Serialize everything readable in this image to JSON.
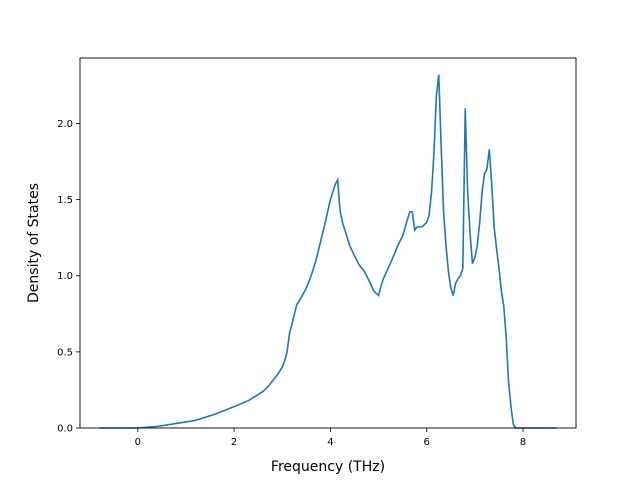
{
  "chart_data": {
    "type": "line",
    "xlabel": "Frequency (THz)",
    "ylabel": "Density of States",
    "xlim": [
      -1.2,
      9.1
    ],
    "ylim": [
      0.0,
      2.43
    ],
    "xticks": [
      0,
      2,
      4,
      6,
      8
    ],
    "yticks": [
      0.0,
      0.5,
      1.0,
      1.5,
      2.0
    ],
    "xtick_labels": [
      "0",
      "2",
      "4",
      "6",
      "8"
    ],
    "ytick_labels": [
      "0.0",
      "0.5",
      "1.0",
      "1.5",
      "2.0"
    ],
    "grid": false,
    "series": [
      {
        "color": "#1f77b4",
        "x": [
          -0.8,
          -0.4,
          0.0,
          0.4,
          0.8,
          1.2,
          1.6,
          2.0,
          2.3,
          2.6,
          2.7,
          2.8,
          2.9,
          3.0,
          3.05,
          3.1,
          3.15,
          3.2,
          3.3,
          3.4,
          3.5,
          3.6,
          3.7,
          3.8,
          3.9,
          4.0,
          4.1,
          4.15,
          4.2,
          4.25,
          4.3,
          4.4,
          4.5,
          4.6,
          4.7,
          4.8,
          4.9,
          5.0,
          5.05,
          5.1,
          5.2,
          5.3,
          5.4,
          5.5,
          5.6,
          5.65,
          5.7,
          5.75,
          5.8,
          5.9,
          6.0,
          6.05,
          6.1,
          6.15,
          6.2,
          6.25,
          6.3,
          6.35,
          6.4,
          6.45,
          6.5,
          6.55,
          6.6,
          6.65,
          6.7,
          6.75,
          6.8,
          6.85,
          6.9,
          6.95,
          7.0,
          7.05,
          7.1,
          7.15,
          7.2,
          7.25,
          7.3,
          7.35,
          7.4,
          7.45,
          7.5,
          7.55,
          7.6,
          7.65,
          7.7,
          7.75,
          7.8,
          7.85,
          7.9,
          8.0,
          8.1,
          8.3,
          8.7
        ],
        "y": [
          0.0,
          0.0,
          0.0,
          0.01,
          0.03,
          0.05,
          0.09,
          0.14,
          0.18,
          0.24,
          0.27,
          0.31,
          0.35,
          0.4,
          0.44,
          0.5,
          0.62,
          0.68,
          0.81,
          0.86,
          0.92,
          1.0,
          1.1,
          1.23,
          1.36,
          1.5,
          1.6,
          1.63,
          1.43,
          1.35,
          1.3,
          1.2,
          1.13,
          1.07,
          1.03,
          0.97,
          0.9,
          0.87,
          0.93,
          0.98,
          1.05,
          1.12,
          1.2,
          1.26,
          1.37,
          1.42,
          1.42,
          1.3,
          1.32,
          1.32,
          1.35,
          1.4,
          1.55,
          1.8,
          2.18,
          2.32,
          1.85,
          1.42,
          1.2,
          1.03,
          0.92,
          0.87,
          0.95,
          0.98,
          1.0,
          1.05,
          2.1,
          1.55,
          1.28,
          1.08,
          1.12,
          1.2,
          1.35,
          1.55,
          1.67,
          1.7,
          1.83,
          1.6,
          1.32,
          1.18,
          1.05,
          0.9,
          0.8,
          0.6,
          0.3,
          0.14,
          0.02,
          0.0,
          0.0,
          0.0,
          0.0,
          0.0,
          0.0
        ]
      }
    ]
  }
}
